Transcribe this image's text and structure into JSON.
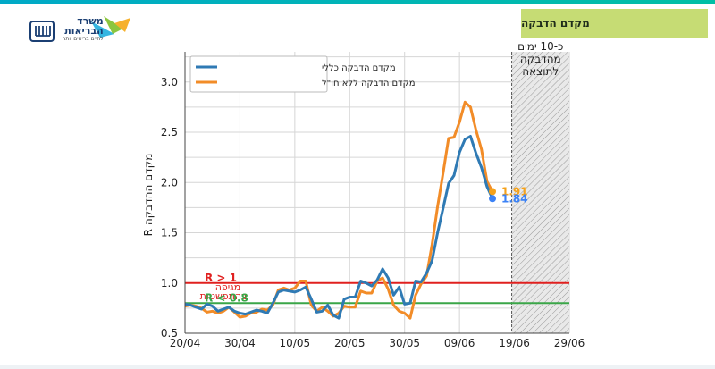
{
  "page": {
    "slide_title": "מקדם הדבקה"
  },
  "logo": {
    "line1": "משרד",
    "line2": "הבריאות",
    "tagline": "לחיים בריאים יותר"
  },
  "chart_data": {
    "type": "line",
    "ylabel": "R מקדם ההדבקה",
    "ylim": [
      0.5,
      3.3
    ],
    "x_ticks": [
      "20/04",
      "30/04",
      "10/05",
      "20/05",
      "30/05",
      "09/06",
      "19/06",
      "29/06"
    ],
    "y_ticks": [
      "0.5",
      "1.0",
      "1.5",
      "2.0",
      "2.5",
      "3.0"
    ],
    "grid": true,
    "legend_placement": "top-left",
    "shaded_region_label": [
      "כ-10 ימים",
      "מהדבקה",
      "לתוצאה"
    ],
    "reference_lines": [
      {
        "value": 1.0,
        "color": "#e0201f",
        "label": "R > 1",
        "sublabel": "מגיפה בהתפשטות"
      },
      {
        "value": 0.8,
        "color": "#3aa648",
        "label": "R < 0.8"
      }
    ],
    "annotations": [
      {
        "series": "מקדם הדבקה ללא חו\"ל",
        "text": "1.91",
        "color": "#f5a21b"
      },
      {
        "series": "מקדם הדבקה כללי",
        "text": "1.84",
        "color": "#3b82f6"
      }
    ],
    "series": [
      {
        "name": "מקדם הדבקה כללי",
        "color": "#2f7ab4",
        "values": [
          0.79,
          0.78,
          0.76,
          0.74,
          0.79,
          0.77,
          0.72,
          0.74,
          0.76,
          0.72,
          0.7,
          0.69,
          0.71,
          0.73,
          0.72,
          0.7,
          0.8,
          0.91,
          0.93,
          0.92,
          0.91,
          0.93,
          0.96,
          0.84,
          0.71,
          0.72,
          0.78,
          0.68,
          0.65,
          0.84,
          0.86,
          0.86,
          1.02,
          1.0,
          0.97,
          1.03,
          1.14,
          1.05,
          0.88,
          0.96,
          0.79,
          0.8,
          1.02,
          1.01,
          1.1,
          1.22,
          1.5,
          1.74,
          1.99,
          2.07,
          2.3,
          2.43,
          2.46,
          2.29,
          2.15,
          1.96,
          1.84
        ]
      },
      {
        "name": "מקדם הדבקה ללא חו\"ל",
        "color": "#f28c28",
        "values": [
          0.77,
          0.78,
          0.77,
          0.75,
          0.71,
          0.72,
          0.7,
          0.72,
          0.76,
          0.71,
          0.66,
          0.67,
          0.7,
          0.71,
          0.74,
          0.73,
          0.78,
          0.93,
          0.95,
          0.93,
          0.95,
          1.02,
          1.02,
          0.78,
          0.72,
          0.76,
          0.72,
          0.67,
          0.7,
          0.77,
          0.76,
          0.76,
          0.92,
          0.9,
          0.9,
          1.02,
          1.05,
          0.94,
          0.78,
          0.72,
          0.7,
          0.65,
          0.88,
          0.99,
          1.07,
          1.38,
          1.76,
          2.09,
          2.44,
          2.45,
          2.6,
          2.8,
          2.75,
          2.52,
          2.33,
          2.01,
          1.91
        ]
      }
    ]
  }
}
